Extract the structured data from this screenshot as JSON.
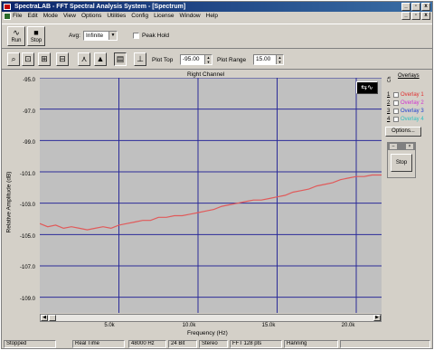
{
  "window": {
    "title": "SpectraLAB - FFT Spectral Analysis System - [Spectrum]",
    "controls": [
      "_",
      "▫",
      "x"
    ]
  },
  "menubar": {
    "items": [
      "File",
      "Edit",
      "Mode",
      "View",
      "Options",
      "Utilities",
      "Config",
      "License",
      "Window",
      "Help"
    ],
    "mdi_controls": [
      "_",
      "▫",
      "x"
    ]
  },
  "toolbar": {
    "run_label": "Run",
    "stop_label": "Stop",
    "avg_label": "Avg:",
    "avg_value": "Infinite",
    "peak_hold_label": "Peak Hold",
    "peak_hold_checked": false
  },
  "toolbar2": {
    "icons": [
      "zoom-icon",
      "scale-fit-icon",
      "scale-x-icon",
      "peak-marker-icon",
      "area-icon",
      "display-icon",
      "cursor-icon"
    ],
    "plot_top_label": "Plot Top",
    "plot_top_value": "-95.00",
    "plot_range_label": "Plot Range",
    "plot_range_value": "15.00"
  },
  "plot": {
    "channel_title": "Right Channel",
    "yaxis_title": "Relative Amplitude (dB)",
    "xaxis_title": "Frequency (Hz)",
    "ytick_labels": [
      "-95.0",
      "-97.0",
      "-99.0",
      "-101.0",
      "-103.0",
      "-105.0",
      "-107.0",
      "-109.0"
    ],
    "xtick_labels": [
      "5.0k",
      "10.0k",
      "15.0k",
      "20.0k"
    ]
  },
  "chart_data": {
    "type": "line",
    "title": "Right Channel",
    "xlabel": "Frequency (Hz)",
    "ylabel": "Relative Amplitude (dB)",
    "xlim": [
      0,
      21600
    ],
    "ylim": [
      -110,
      -95
    ],
    "grid": true,
    "colors": {
      "background": "#c0c0c0",
      "grid": "#2b2b99",
      "line": "#e05a5a"
    },
    "series": [
      {
        "x": [
          0,
          500,
          1000,
          1500,
          2000,
          2500,
          3000,
          3500,
          4000,
          4500,
          5000,
          5500,
          6000,
          6500,
          7000,
          7500,
          8000,
          8500,
          9000,
          9500,
          10000,
          10500,
          11000,
          11500,
          12000,
          12500,
          13000,
          13500,
          14000,
          14500,
          15000,
          15500,
          16000,
          16500,
          17000,
          17500,
          18000,
          18500,
          19000,
          19500,
          20000,
          20500,
          21000,
          21600
        ],
        "y": [
          -104.3,
          -104.5,
          -104.4,
          -104.6,
          -104.5,
          -104.6,
          -104.7,
          -104.6,
          -104.5,
          -104.6,
          -104.4,
          -104.3,
          -104.2,
          -104.1,
          -104.1,
          -103.9,
          -103.9,
          -103.8,
          -103.8,
          -103.7,
          -103.6,
          -103.5,
          -103.4,
          -103.2,
          -103.1,
          -103.0,
          -102.9,
          -102.8,
          -102.8,
          -102.7,
          -102.6,
          -102.5,
          -102.3,
          -102.2,
          -102.1,
          -101.9,
          -101.8,
          -101.7,
          -101.5,
          -101.4,
          -101.3,
          -101.3,
          -101.2,
          -101.2
        ]
      }
    ]
  },
  "overlays": {
    "header": "Overlays",
    "ch_label": "Ch",
    "items": [
      {
        "num": "1",
        "label": "Overlay 1",
        "color": "#e03030"
      },
      {
        "num": "2",
        "label": "Overlay 2",
        "color": "#d030d0"
      },
      {
        "num": "3",
        "label": "Overlay 3",
        "color": "#2040d0"
      },
      {
        "num": "4",
        "label": "Overlay 4",
        "color": "#30c0c0"
      }
    ],
    "options_label": "Options...",
    "mini_stop_label": "Stop"
  },
  "status": {
    "state": "Stopped",
    "mode": "Real Time",
    "sample_rate": "48000 Hz",
    "bits": "24 Bit",
    "channels": "Stereo",
    "fft_size": "FFT 128 pts",
    "window": "Hanning"
  }
}
